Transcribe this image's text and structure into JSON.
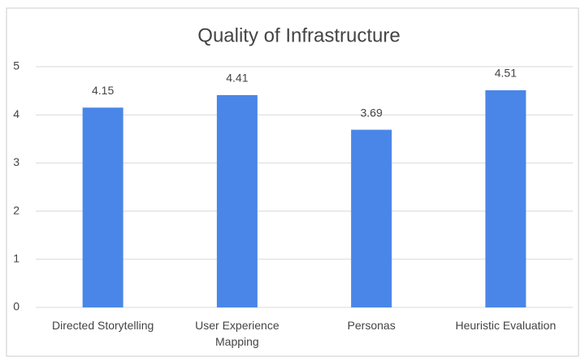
{
  "chart_data": {
    "type": "bar",
    "title": "Quality of Infrastructure",
    "categories": [
      "Directed Storytelling",
      "User Experience Mapping",
      "Personas",
      "Heuristic Evaluation"
    ],
    "values": [
      4.15,
      4.41,
      3.69,
      4.51
    ],
    "color": "#4a86e8",
    "ylim": [
      0,
      5
    ],
    "yticks": [
      0,
      1,
      2,
      3,
      4,
      5
    ],
    "grid": true
  }
}
